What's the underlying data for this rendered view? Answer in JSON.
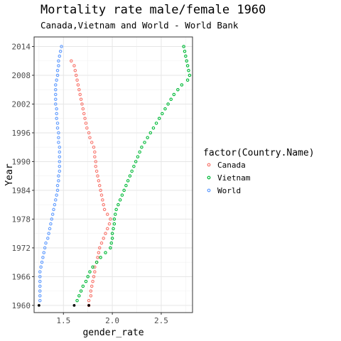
{
  "chart_data": {
    "type": "scatter",
    "title": "Mortality rate male/female 1960",
    "subtitle": "Canada,Vietnam and World - World Bank",
    "xlabel": "gender_rate",
    "ylabel": "Year",
    "xlim": [
      1.2,
      2.82
    ],
    "ylim": [
      1958.5,
      2016
    ],
    "x_ticks": [
      1.5,
      2.0,
      2.5
    ],
    "x_tick_labels": [
      "1.5",
      "2.0",
      "2.5"
    ],
    "y_ticks": [
      1960,
      1966,
      1972,
      1978,
      1984,
      1990,
      1996,
      2002,
      2008,
      2014
    ],
    "grid": true,
    "legend_position": "right",
    "legend_title": "factor(Country.Name)",
    "series": [
      {
        "name": "Canada",
        "color": "#F8766D",
        "points": [
          [
            1960,
            1.76
          ],
          [
            1961,
            1.76
          ],
          [
            1962,
            1.78
          ],
          [
            1963,
            1.78
          ],
          [
            1964,
            1.79
          ],
          [
            1965,
            1.8
          ],
          [
            1966,
            1.81
          ],
          [
            1967,
            1.82
          ],
          [
            1968,
            1.82
          ],
          [
            1969,
            1.84
          ],
          [
            1970,
            1.85
          ],
          [
            1971,
            1.86
          ],
          [
            1972,
            1.87
          ],
          [
            1973,
            1.89
          ],
          [
            1974,
            1.91
          ],
          [
            1975,
            1.93
          ],
          [
            1976,
            1.95
          ],
          [
            1977,
            1.97
          ],
          [
            1978,
            1.98
          ],
          [
            1979,
            1.95
          ],
          [
            1980,
            1.92
          ],
          [
            1981,
            1.91
          ],
          [
            1982,
            1.9
          ],
          [
            1983,
            1.89
          ],
          [
            1984,
            1.88
          ],
          [
            1985,
            1.87
          ],
          [
            1986,
            1.86
          ],
          [
            1987,
            1.85
          ],
          [
            1988,
            1.84
          ],
          [
            1989,
            1.83
          ],
          [
            1990,
            1.83
          ],
          [
            1991,
            1.82
          ],
          [
            1992,
            1.82
          ],
          [
            1993,
            1.81
          ],
          [
            1994,
            1.79
          ],
          [
            1995,
            1.77
          ],
          [
            1996,
            1.76
          ],
          [
            1997,
            1.74
          ],
          [
            1998,
            1.73
          ],
          [
            1999,
            1.72
          ],
          [
            2000,
            1.71
          ],
          [
            2001,
            1.7
          ],
          [
            2002,
            1.69
          ],
          [
            2003,
            1.68
          ],
          [
            2004,
            1.67
          ],
          [
            2005,
            1.66
          ],
          [
            2006,
            1.65
          ],
          [
            2007,
            1.64
          ],
          [
            2008,
            1.63
          ],
          [
            2009,
            1.62
          ],
          [
            2010,
            1.61
          ],
          [
            2011,
            1.58
          ]
        ]
      },
      {
        "name": "Vietnam",
        "color": "#00BA38",
        "points": [
          [
            1961,
            1.64
          ],
          [
            1962,
            1.66
          ],
          [
            1963,
            1.68
          ],
          [
            1964,
            1.7
          ],
          [
            1965,
            1.73
          ],
          [
            1966,
            1.75
          ],
          [
            1967,
            1.77
          ],
          [
            1968,
            1.8
          ],
          [
            1969,
            1.84
          ],
          [
            1970,
            1.88
          ],
          [
            1971,
            1.93
          ],
          [
            1972,
            1.98
          ],
          [
            1973,
            1.99
          ],
          [
            1974,
            2.0
          ],
          [
            1975,
            2.0
          ],
          [
            1976,
            2.01
          ],
          [
            1977,
            2.02
          ],
          [
            1978,
            2.02
          ],
          [
            1979,
            2.03
          ],
          [
            1980,
            2.04
          ],
          [
            1981,
            2.06
          ],
          [
            1982,
            2.08
          ],
          [
            1983,
            2.1
          ],
          [
            1984,
            2.12
          ],
          [
            1985,
            2.14
          ],
          [
            1986,
            2.16
          ],
          [
            1987,
            2.18
          ],
          [
            1988,
            2.2
          ],
          [
            1989,
            2.22
          ],
          [
            1990,
            2.24
          ],
          [
            1991,
            2.26
          ],
          [
            1992,
            2.28
          ],
          [
            1993,
            2.3
          ],
          [
            1994,
            2.33
          ],
          [
            1995,
            2.36
          ],
          [
            1996,
            2.39
          ],
          [
            1997,
            2.42
          ],
          [
            1998,
            2.45
          ],
          [
            1999,
            2.48
          ],
          [
            2000,
            2.51
          ],
          [
            2001,
            2.54
          ],
          [
            2002,
            2.57
          ],
          [
            2003,
            2.6
          ],
          [
            2004,
            2.63
          ],
          [
            2005,
            2.67
          ],
          [
            2006,
            2.71
          ],
          [
            2007,
            2.77
          ],
          [
            2008,
            2.79
          ],
          [
            2009,
            2.78
          ],
          [
            2010,
            2.77
          ],
          [
            2011,
            2.76
          ],
          [
            2012,
            2.75
          ],
          [
            2013,
            2.74
          ],
          [
            2014,
            2.73
          ]
        ]
      },
      {
        "name": "World",
        "color": "#619CFF",
        "points": [
          [
            1961,
            1.26
          ],
          [
            1962,
            1.26
          ],
          [
            1963,
            1.26
          ],
          [
            1964,
            1.26
          ],
          [
            1965,
            1.26
          ],
          [
            1966,
            1.26
          ],
          [
            1967,
            1.26
          ],
          [
            1968,
            1.27
          ],
          [
            1969,
            1.28
          ],
          [
            1970,
            1.29
          ],
          [
            1971,
            1.3
          ],
          [
            1972,
            1.31
          ],
          [
            1973,
            1.32
          ],
          [
            1974,
            1.34
          ],
          [
            1975,
            1.35
          ],
          [
            1976,
            1.36
          ],
          [
            1977,
            1.37
          ],
          [
            1978,
            1.38
          ],
          [
            1979,
            1.39
          ],
          [
            1980,
            1.4
          ],
          [
            1981,
            1.41
          ],
          [
            1982,
            1.42
          ],
          [
            1983,
            1.43
          ],
          [
            1984,
            1.44
          ],
          [
            1985,
            1.44
          ],
          [
            1986,
            1.45
          ],
          [
            1987,
            1.45
          ],
          [
            1988,
            1.46
          ],
          [
            1989,
            1.46
          ],
          [
            1990,
            1.46
          ],
          [
            1991,
            1.46
          ],
          [
            1992,
            1.46
          ],
          [
            1993,
            1.46
          ],
          [
            1994,
            1.45
          ],
          [
            1995,
            1.45
          ],
          [
            1996,
            1.45
          ],
          [
            1997,
            1.44
          ],
          [
            1998,
            1.44
          ],
          [
            1999,
            1.43
          ],
          [
            2000,
            1.43
          ],
          [
            2001,
            1.43
          ],
          [
            2002,
            1.42
          ],
          [
            2003,
            1.42
          ],
          [
            2004,
            1.42
          ],
          [
            2005,
            1.42
          ],
          [
            2006,
            1.42
          ],
          [
            2007,
            1.43
          ],
          [
            2008,
            1.44
          ],
          [
            2009,
            1.44
          ],
          [
            2010,
            1.45
          ],
          [
            2011,
            1.45
          ],
          [
            2012,
            1.46
          ],
          [
            2013,
            1.47
          ],
          [
            2014,
            1.48
          ]
        ]
      },
      {
        "name": "",
        "color": "#000000",
        "points": [
          [
            1960,
            1.25
          ],
          [
            1960,
            1.61
          ],
          [
            1960,
            1.76
          ]
        ]
      }
    ]
  }
}
